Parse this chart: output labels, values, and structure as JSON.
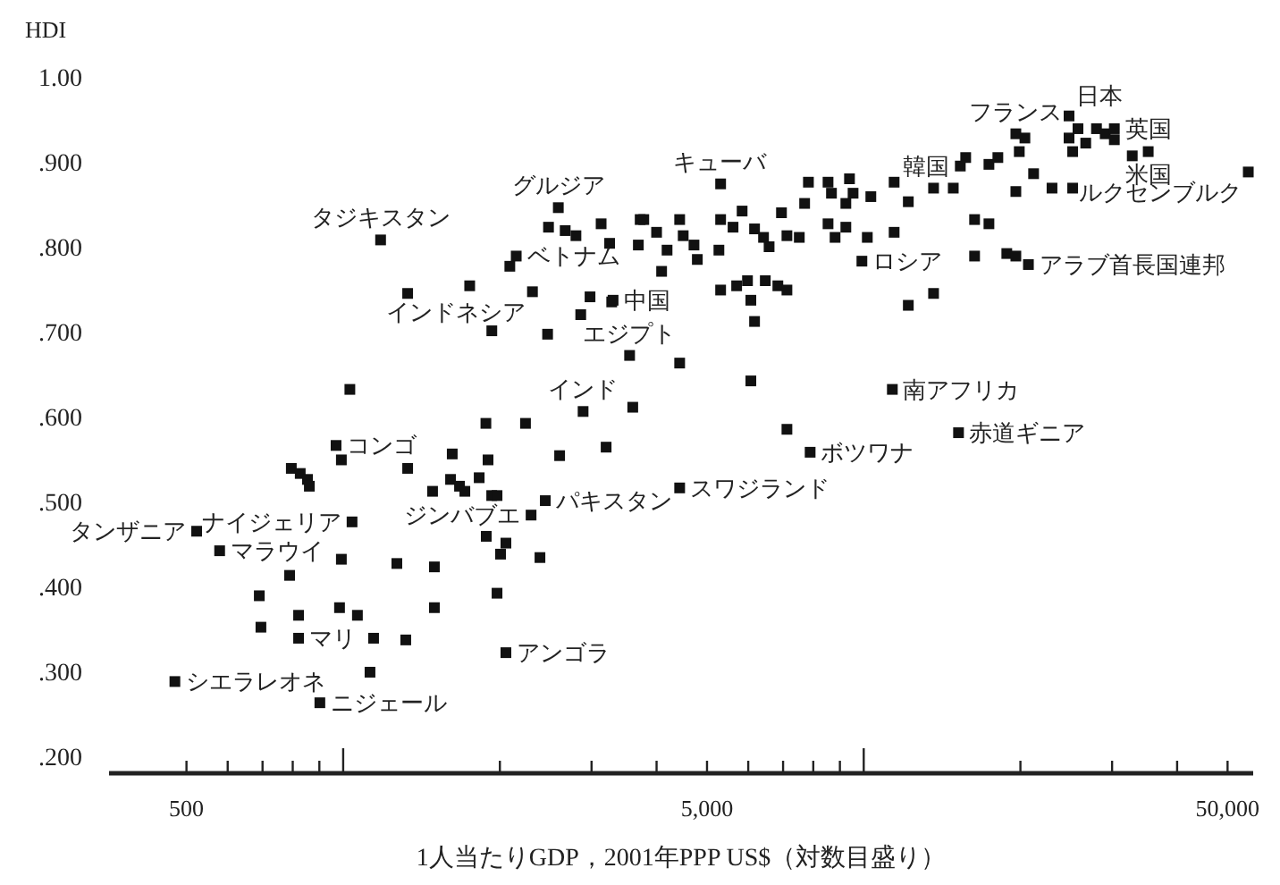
{
  "chart_data": {
    "type": "scatter",
    "ylabel": "HDI",
    "xlabel": "1人当たりGDP，2001年PPP US$（対数目盛り）",
    "log": "x",
    "marker": "square",
    "xlim": [
      355,
      56000
    ],
    "ylim": [
      0.18,
      1.0
    ],
    "xticks": [
      500,
      {
        "value": 600,
        "label": null
      },
      {
        "value": 700,
        "label": null
      },
      {
        "value": 800,
        "label": null
      },
      {
        "value": 900,
        "label": null
      },
      {
        "value": 1000,
        "label": null
      },
      {
        "value": 2000,
        "label": null
      },
      {
        "value": 3000,
        "label": null
      },
      {
        "value": 4000,
        "label": null
      },
      {
        "value": 5000,
        "label": "5,000"
      },
      {
        "value": 6000,
        "label": null
      },
      {
        "value": 7000,
        "label": null
      },
      {
        "value": 8000,
        "label": null
      },
      {
        "value": 9000,
        "label": null
      },
      {
        "value": 10000,
        "label": null
      },
      {
        "value": 20000,
        "label": null
      },
      {
        "value": 30000,
        "label": null
      },
      {
        "value": 40000,
        "label": null
      },
      {
        "value": 50000,
        "label": "50,000"
      }
    ],
    "yticks": [
      {
        "value": 0.2,
        "label": ".200"
      },
      {
        "value": 0.3,
        "label": ".300"
      },
      {
        "value": 0.4,
        "label": ".400"
      },
      {
        "value": 0.5,
        "label": ".500"
      },
      {
        "value": 0.6,
        "label": ".600"
      },
      {
        "value": 0.7,
        "label": ".700"
      },
      {
        "value": 0.8,
        "label": ".800"
      },
      {
        "value": 0.9,
        "label": ".900"
      },
      {
        "value": 1.0,
        "label": "1.00"
      }
    ],
    "series": [
      {
        "color": "#111111",
        "x": [
          1180,
          1330,
          1750,
          2090,
          2150,
          2310,
          2590,
          2480,
          2670,
          2800,
          3130,
          3250,
          3690,
          3720,
          2980,
          3280,
          2860,
          1930,
          2470,
          3550,
          1030,
          1880,
          2240,
          2890,
          3600,
          5310,
          3780,
          4000,
          4430,
          4500,
          4720,
          4790,
          4190,
          5310,
          5610,
          5840,
          6170,
          6420,
          6580,
          5270,
          6950,
          7700,
          7120,
          7520,
          7830,
          8540,
          8670,
          9390,
          9240,
          9540,
          10320,
          8540,
          8810,
          9240,
          10160,
          11440,
          9920,
          11440,
          12180,
          13620,
          14860,
          15700,
          15330,
          17400,
          18100,
          19900,
          19600,
          20400,
          19600,
          21200,
          23000,
          25200,
          24800,
          24800,
          25800,
          26700,
          28000,
          29100,
          30300,
          30300,
          25200,
          32800,
          35200,
          54800,
          16330,
          17400,
          16330,
          18830,
          19600,
          20720,
          12180,
          13620,
          5310,
          5700,
          5980,
          6470,
          6840,
          7120,
          6070,
          6170,
          4090,
          3300,
          4430,
          6070,
          7120,
          11350,
          15210,
          969,
          992,
          795,
          827,
          854,
          861,
          1330,
          1620,
          1485,
          1608,
          1673,
          1713,
          1825,
          1898,
          1929,
          1975,
          2605,
          3200,
          1040,
          2445,
          2296,
          1883,
          2054,
          2006,
          2388,
          523,
          579,
          992,
          1268,
          1497,
          789,
          690,
          1975,
          821,
          984,
          1065,
          1497,
          695,
          821,
          1144,
          1319,
          2054,
          1126,
          475,
          902,
          7890,
          4430
        ],
        "values": [
          0.808,
          0.745,
          0.754,
          0.777,
          0.789,
          0.747,
          0.846,
          0.823,
          0.819,
          0.813,
          0.827,
          0.804,
          0.802,
          0.832,
          0.741,
          0.735,
          0.72,
          0.701,
          0.697,
          0.672,
          0.632,
          0.592,
          0.592,
          0.606,
          0.611,
          0.874,
          0.832,
          0.817,
          0.832,
          0.813,
          0.802,
          0.785,
          0.796,
          0.832,
          0.823,
          0.842,
          0.821,
          0.811,
          0.8,
          0.796,
          0.84,
          0.851,
          0.813,
          0.811,
          0.876,
          0.876,
          0.863,
          0.88,
          0.851,
          0.863,
          0.859,
          0.827,
          0.811,
          0.823,
          0.811,
          0.817,
          0.783,
          0.876,
          0.853,
          0.869,
          0.869,
          0.905,
          0.895,
          0.897,
          0.905,
          0.912,
          0.933,
          0.928,
          0.865,
          0.886,
          0.869,
          0.869,
          0.954,
          0.928,
          0.939,
          0.922,
          0.939,
          0.933,
          0.939,
          0.926,
          0.912,
          0.907,
          0.912,
          0.888,
          0.832,
          0.827,
          0.789,
          0.792,
          0.789,
          0.779,
          0.731,
          0.745,
          0.749,
          0.754,
          0.76,
          0.76,
          0.754,
          0.749,
          0.737,
          0.712,
          0.771,
          0.737,
          0.663,
          0.642,
          0.585,
          0.632,
          0.581,
          0.566,
          0.549,
          0.539,
          0.533,
          0.526,
          0.518,
          0.539,
          0.556,
          0.512,
          0.526,
          0.518,
          0.512,
          0.528,
          0.549,
          0.507,
          0.507,
          0.554,
          0.564,
          0.476,
          0.501,
          0.484,
          0.459,
          0.451,
          0.438,
          0.434,
          0.465,
          0.442,
          0.432,
          0.427,
          0.423,
          0.413,
          0.389,
          0.392,
          0.366,
          0.375,
          0.366,
          0.375,
          0.352,
          0.339,
          0.339,
          0.337,
          0.322,
          0.299,
          0.288,
          0.263,
          0.558,
          0.516
        ]
      }
    ],
    "annotations": [
      {
        "text": "タジキスタン",
        "x": 1180,
        "y": 0.808
      },
      {
        "text": "ベトナム",
        "x": 2150,
        "y": 0.789
      },
      {
        "text": "グルジア",
        "x": 2590,
        "y": 0.846
      },
      {
        "text": "インドネシア",
        "x": 2310,
        "y": 0.747
      },
      {
        "text": "エジプト",
        "x": 3550,
        "y": 0.672
      },
      {
        "text": "中国",
        "x": 3300,
        "y": 0.737
      },
      {
        "text": "キューバ",
        "x": 5310,
        "y": 0.874
      },
      {
        "text": "ロシア",
        "x": 9920,
        "y": 0.783
      },
      {
        "text": "韓国",
        "x": 15330,
        "y": 0.895
      },
      {
        "text": "フランス",
        "x": 19600,
        "y": 0.933
      },
      {
        "text": "日本",
        "x": 24800,
        "y": 0.954
      },
      {
        "text": "英国",
        "x": 30300,
        "y": 0.939
      },
      {
        "text": "米国",
        "x": 35200,
        "y": 0.912
      },
      {
        "text": "ルクセンブルク",
        "x": 54800,
        "y": 0.888
      },
      {
        "text": "アラブ首長国連邦",
        "x": 20720,
        "y": 0.779
      },
      {
        "text": "南アフリカ",
        "x": 11350,
        "y": 0.632
      },
      {
        "text": "赤道ギニア",
        "x": 15210,
        "y": 0.581
      },
      {
        "text": "ボツワナ",
        "x": 7890,
        "y": 0.558
      },
      {
        "text": "スワジランド",
        "x": 4430,
        "y": 0.516
      },
      {
        "text": "パキスタン",
        "x": 2445,
        "y": 0.501
      },
      {
        "text": "ジンバブエ",
        "x": 2296,
        "y": 0.484
      },
      {
        "text": "インド",
        "x": 2890,
        "y": 0.606
      },
      {
        "text": "コンゴ",
        "x": 969,
        "y": 0.566
      },
      {
        "text": "ナイジェリア",
        "x": 1040,
        "y": 0.476
      },
      {
        "text": "タンザニア",
        "x": 523,
        "y": 0.465
      },
      {
        "text": "マラウイ",
        "x": 579,
        "y": 0.442
      },
      {
        "text": "マリ",
        "x": 821,
        "y": 0.339
      },
      {
        "text": "シエラレオネ",
        "x": 475,
        "y": 0.288
      },
      {
        "text": "ニジェール",
        "x": 902,
        "y": 0.263
      },
      {
        "text": "アンゴラ",
        "x": 2054,
        "y": 0.322
      }
    ]
  }
}
